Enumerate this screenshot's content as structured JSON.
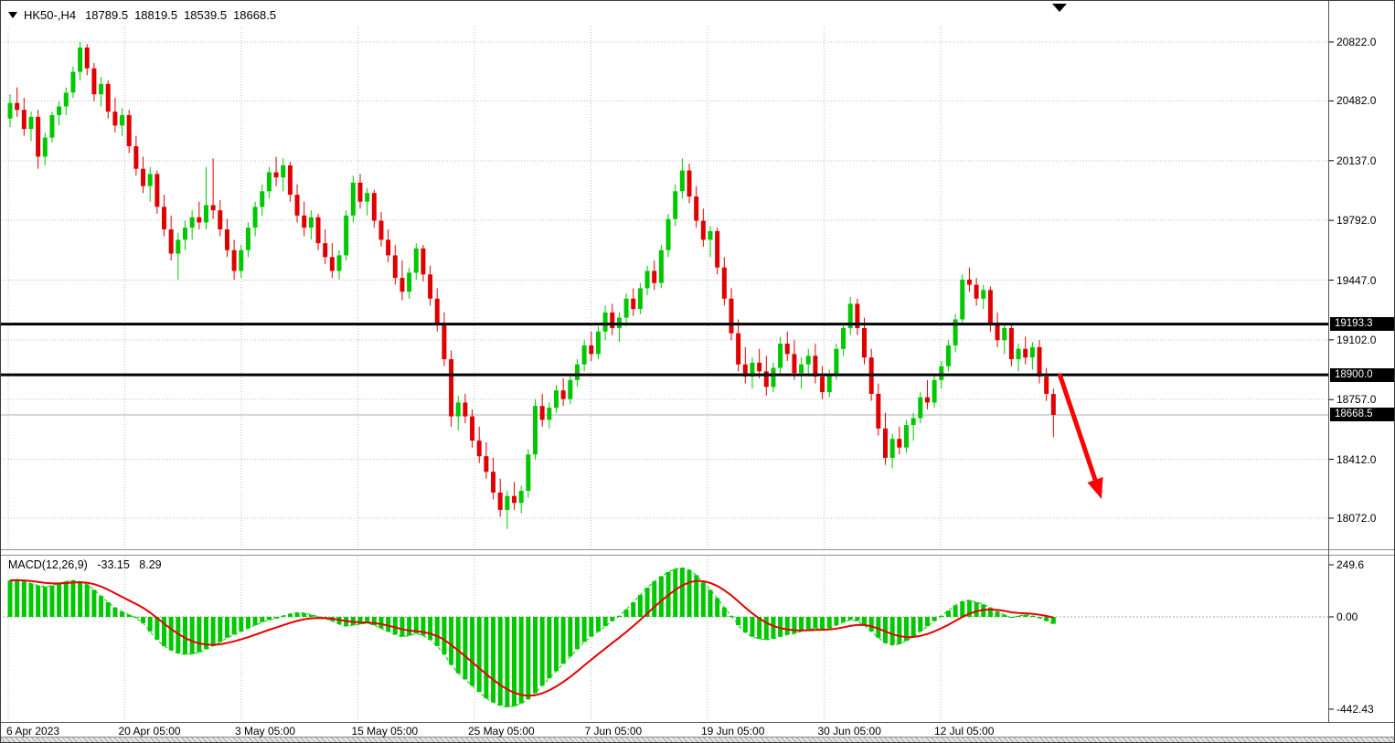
{
  "header": {
    "symbol_period": "HK50-,H4",
    "open": "18789.5",
    "high": "18819.5",
    "low": "18539.5",
    "close": "18668.5"
  },
  "macd_panel": {
    "label": "MACD(12,26,9)",
    "macd_value": "-33.15",
    "signal_value": "8.29"
  },
  "icons": {
    "symbol_dropdown": "triangle-down-icon",
    "last_bar_marker": "triangle-down-icon"
  },
  "colors": {
    "up": "#00C800",
    "down": "#E00000",
    "signal": "#E60000",
    "arrow": "#FF0000",
    "level": "#000000",
    "grid": "#BDBDBD",
    "current_price_line": "#ADADAD",
    "tag_bg": "#000000",
    "tag_text": "#FFFFFF"
  },
  "chart_data": [
    {
      "type": "candlestick",
      "title": "HK50-,H4",
      "timeframe": "H4",
      "x_labels": [
        "6 Apr 2023",
        "20 Apr 05:00",
        "3 May 05:00",
        "15 May 05:00",
        "25 May 05:00",
        "7 Jun 05:00",
        "19 Jun 05:00",
        "30 Jun 05:00",
        "12 Jul 05:00"
      ],
      "y_ticks": [
        20822.0,
        20482.0,
        20137.0,
        19792.0,
        19447.0,
        19102.0,
        18757.0,
        18412.0,
        18072.0
      ],
      "y_tick_labels": [
        "20822.0",
        "20482.0",
        "20137.0",
        "19792.0",
        "19447.0",
        "19102.0",
        "18757.0",
        "18412.0",
        "18072.0"
      ],
      "ylim": [
        17890,
        20915
      ],
      "grid": true,
      "levels": [
        {
          "price": 19193.3,
          "label": "19193.3"
        },
        {
          "price": 18900.0,
          "label": "18900.0"
        }
      ],
      "current_price": {
        "price": 18668.5,
        "label": "18668.5"
      },
      "last_ohlc": {
        "open": 18789.5,
        "high": 18819.5,
        "low": 18539.5,
        "close": 18668.5
      },
      "annotations": [
        {
          "type": "arrow",
          "direction": "down-right",
          "color": "#FF0000"
        }
      ],
      "candles": [
        [
          20380,
          20520,
          20330,
          20470
        ],
        [
          20470,
          20560,
          20390,
          20430
        ],
        [
          20430,
          20500,
          20280,
          20320
        ],
        [
          20320,
          20420,
          20250,
          20390
        ],
        [
          20390,
          20430,
          20090,
          20160
        ],
        [
          20160,
          20300,
          20110,
          20270
        ],
        [
          20270,
          20420,
          20240,
          20400
        ],
        [
          20400,
          20480,
          20340,
          20450
        ],
        [
          20450,
          20560,
          20400,
          20530
        ],
        [
          20530,
          20680,
          20500,
          20650
        ],
        [
          20650,
          20822,
          20600,
          20790
        ],
        [
          20790,
          20810,
          20630,
          20670
        ],
        [
          20670,
          20700,
          20480,
          20520
        ],
        [
          20520,
          20620,
          20450,
          20580
        ],
        [
          20580,
          20600,
          20380,
          20420
        ],
        [
          20420,
          20500,
          20300,
          20340
        ],
        [
          20340,
          20440,
          20280,
          20400
        ],
        [
          20400,
          20430,
          20180,
          20220
        ],
        [
          20220,
          20280,
          20050,
          20090
        ],
        [
          20090,
          20160,
          19950,
          19990
        ],
        [
          19990,
          20100,
          19900,
          20060
        ],
        [
          20060,
          20080,
          19830,
          19870
        ],
        [
          19870,
          19940,
          19700,
          19740
        ],
        [
          19740,
          19820,
          19560,
          19600
        ],
        [
          19600,
          19720,
          19450,
          19680
        ],
        [
          19680,
          19790,
          19620,
          19750
        ],
        [
          19750,
          19850,
          19680,
          19810
        ],
        [
          19810,
          19900,
          19740,
          19780
        ],
        [
          19780,
          20100,
          19740,
          19880
        ],
        [
          19880,
          20150,
          19800,
          19850
        ],
        [
          19850,
          19910,
          19700,
          19740
        ],
        [
          19740,
          19800,
          19580,
          19620
        ],
        [
          19620,
          19680,
          19450,
          19500
        ],
        [
          19500,
          19650,
          19460,
          19620
        ],
        [
          19620,
          19780,
          19580,
          19750
        ],
        [
          19750,
          19900,
          19700,
          19870
        ],
        [
          19870,
          20000,
          19820,
          19960
        ],
        [
          19960,
          20100,
          19920,
          20070
        ],
        [
          20070,
          20160,
          19990,
          20040
        ],
        [
          20040,
          20150,
          19960,
          20110
        ],
        [
          20110,
          20130,
          19900,
          19940
        ],
        [
          19940,
          20000,
          19780,
          19820
        ],
        [
          19820,
          19900,
          19700,
          19750
        ],
        [
          19750,
          19850,
          19680,
          19810
        ],
        [
          19810,
          19830,
          19620,
          19660
        ],
        [
          19660,
          19740,
          19540,
          19580
        ],
        [
          19580,
          19660,
          19460,
          19500
        ],
        [
          19500,
          19620,
          19450,
          19590
        ],
        [
          19590,
          19850,
          19560,
          19820
        ],
        [
          19820,
          20050,
          19780,
          20010
        ],
        [
          20010,
          20060,
          19860,
          19900
        ],
        [
          19900,
          19980,
          19820,
          19950
        ],
        [
          19950,
          19970,
          19750,
          19790
        ],
        [
          19790,
          19840,
          19640,
          19680
        ],
        [
          19680,
          19740,
          19550,
          19590
        ],
        [
          19590,
          19650,
          19420,
          19460
        ],
        [
          19460,
          19560,
          19330,
          19380
        ],
        [
          19380,
          19520,
          19340,
          19490
        ],
        [
          19490,
          19660,
          19450,
          19630
        ],
        [
          19630,
          19650,
          19440,
          19480
        ],
        [
          19480,
          19530,
          19300,
          19340
        ],
        [
          19340,
          19400,
          19150,
          19190
        ],
        [
          19190,
          19260,
          18950,
          18990
        ],
        [
          18990,
          19040,
          18600,
          18660
        ],
        [
          18660,
          18780,
          18580,
          18740
        ],
        [
          18740,
          18790,
          18620,
          18660
        ],
        [
          18660,
          18700,
          18480,
          18520
        ],
        [
          18520,
          18600,
          18390,
          18430
        ],
        [
          18430,
          18510,
          18300,
          18340
        ],
        [
          18340,
          18420,
          18180,
          18220
        ],
        [
          18220,
          18300,
          18080,
          18120
        ],
        [
          18120,
          18230,
          18010,
          18200
        ],
        [
          18200,
          18280,
          18120,
          18160
        ],
        [
          18160,
          18260,
          18100,
          18230
        ],
        [
          18230,
          18470,
          18190,
          18440
        ],
        [
          18440,
          18760,
          18410,
          18720
        ],
        [
          18720,
          18790,
          18600,
          18640
        ],
        [
          18640,
          18740,
          18590,
          18710
        ],
        [
          18710,
          18840,
          18680,
          18810
        ],
        [
          18810,
          18880,
          18720,
          18760
        ],
        [
          18760,
          18900,
          18730,
          18870
        ],
        [
          18870,
          18990,
          18830,
          18960
        ],
        [
          18960,
          19100,
          18920,
          19070
        ],
        [
          19070,
          19150,
          18980,
          19020
        ],
        [
          19020,
          19180,
          18990,
          19150
        ],
        [
          19150,
          19300,
          19100,
          19260
        ],
        [
          19260,
          19310,
          19130,
          19170
        ],
        [
          19170,
          19260,
          19090,
          19230
        ],
        [
          19230,
          19370,
          19180,
          19340
        ],
        [
          19340,
          19400,
          19240,
          19280
        ],
        [
          19280,
          19430,
          19250,
          19400
        ],
        [
          19400,
          19530,
          19360,
          19500
        ],
        [
          19500,
          19560,
          19390,
          19430
        ],
        [
          19430,
          19650,
          19400,
          19620
        ],
        [
          19620,
          19830,
          19580,
          19800
        ],
        [
          19800,
          20000,
          19760,
          19960
        ],
        [
          19960,
          20150,
          19920,
          20080
        ],
        [
          20080,
          20120,
          19890,
          19930
        ],
        [
          19930,
          19990,
          19750,
          19790
        ],
        [
          19790,
          19860,
          19640,
          19680
        ],
        [
          19680,
          19760,
          19580,
          19730
        ],
        [
          19730,
          19750,
          19480,
          19520
        ],
        [
          19520,
          19580,
          19300,
          19340
        ],
        [
          19340,
          19400,
          19100,
          19140
        ],
        [
          19140,
          19220,
          18920,
          18960
        ],
        [
          18960,
          19060,
          18850,
          18890
        ],
        [
          18890,
          19000,
          18820,
          18970
        ],
        [
          18970,
          19050,
          18880,
          18920
        ],
        [
          18920,
          19010,
          18780,
          18830
        ],
        [
          18830,
          18970,
          18800,
          18940
        ],
        [
          18940,
          19120,
          18900,
          19080
        ],
        [
          19080,
          19150,
          18980,
          19020
        ],
        [
          19020,
          19100,
          18870,
          18910
        ],
        [
          18910,
          19000,
          18820,
          18960
        ],
        [
          18960,
          19050,
          18890,
          19010
        ],
        [
          19010,
          19080,
          18850,
          18890
        ],
        [
          18890,
          18950,
          18760,
          18800
        ],
        [
          18800,
          18930,
          18770,
          18900
        ],
        [
          18900,
          19080,
          18870,
          19050
        ],
        [
          19050,
          19200,
          19010,
          19170
        ],
        [
          19170,
          19350,
          19130,
          19310
        ],
        [
          19310,
          19340,
          19130,
          19170
        ],
        [
          19170,
          19230,
          18960,
          19000
        ],
        [
          19000,
          19050,
          18750,
          18790
        ],
        [
          18790,
          18850,
          18550,
          18590
        ],
        [
          18590,
          18680,
          18380,
          18420
        ],
        [
          18420,
          18560,
          18360,
          18530
        ],
        [
          18530,
          18600,
          18440,
          18480
        ],
        [
          18480,
          18640,
          18450,
          18610
        ],
        [
          18610,
          18680,
          18520,
          18650
        ],
        [
          18650,
          18800,
          18620,
          18770
        ],
        [
          18770,
          18870,
          18700,
          18740
        ],
        [
          18740,
          18900,
          18710,
          18870
        ],
        [
          18870,
          18980,
          18820,
          18950
        ],
        [
          18950,
          19100,
          18920,
          19070
        ],
        [
          19070,
          19250,
          19030,
          19220
        ],
        [
          19220,
          19480,
          19190,
          19450
        ],
        [
          19450,
          19520,
          19380,
          19420
        ],
        [
          19420,
          19460,
          19300,
          19340
        ],
        [
          19340,
          19420,
          19280,
          19390
        ],
        [
          19390,
          19410,
          19150,
          19190
        ],
        [
          19190,
          19260,
          19060,
          19100
        ],
        [
          19100,
          19200,
          19020,
          19170
        ],
        [
          19170,
          19190,
          18950,
          18990
        ],
        [
          18990,
          19080,
          18920,
          19050
        ],
        [
          19050,
          19120,
          18960,
          19000
        ],
        [
          19000,
          19090,
          18930,
          19060
        ],
        [
          19060,
          19100,
          18850,
          18890
        ],
        [
          18890,
          18940,
          18750,
          18790
        ],
        [
          18789.5,
          18819.5,
          18539.5,
          18668.5
        ]
      ]
    },
    {
      "type": "bar",
      "title": "MACD(12,26,9)",
      "y_ticks": [
        249.6,
        0.0,
        -442.43
      ],
      "y_tick_labels": [
        "249.6",
        "0.00",
        "-442.43"
      ],
      "last_macd": -33.15,
      "last_signal": 8.29,
      "signal": {
        "type": "ema",
        "period": 9
      },
      "legend_position": "top-left",
      "values": [
        175,
        180,
        170,
        160,
        150,
        145,
        150,
        160,
        170,
        175,
        170,
        155,
        130,
        100,
        70,
        45,
        25,
        10,
        -5,
        -30,
        -70,
        -110,
        -140,
        -160,
        -175,
        -180,
        -178,
        -170,
        -155,
        -140,
        -120,
        -100,
        -85,
        -70,
        -55,
        -40,
        -25,
        -15,
        -8,
        5,
        15,
        20,
        18,
        10,
        2,
        -8,
        -20,
        -35,
        -45,
        -40,
        -35,
        -30,
        -40,
        -55,
        -70,
        -85,
        -95,
        -90,
        -80,
        -90,
        -110,
        -140,
        -180,
        -230,
        -270,
        -300,
        -330,
        -360,
        -390,
        -410,
        -425,
        -432,
        -428,
        -415,
        -395,
        -365,
        -330,
        -295,
        -260,
        -225,
        -190,
        -155,
        -120,
        -95,
        -70,
        -45,
        -20,
        5,
        35,
        70,
        105,
        140,
        170,
        195,
        215,
        230,
        235,
        225,
        200,
        165,
        130,
        90,
        45,
        5,
        -40,
        -75,
        -95,
        -105,
        -110,
        -105,
        -95,
        -85,
        -80,
        -70,
        -60,
        -55,
        -60,
        -55,
        -40,
        -25,
        -15,
        -20,
        -40,
        -70,
        -100,
        -125,
        -135,
        -130,
        -115,
        -95,
        -70,
        -45,
        -20,
        5,
        30,
        55,
        75,
        80,
        70,
        60,
        45,
        25,
        10,
        -5,
        5,
        10,
        5,
        -5,
        -20,
        -33.15
      ]
    }
  ]
}
